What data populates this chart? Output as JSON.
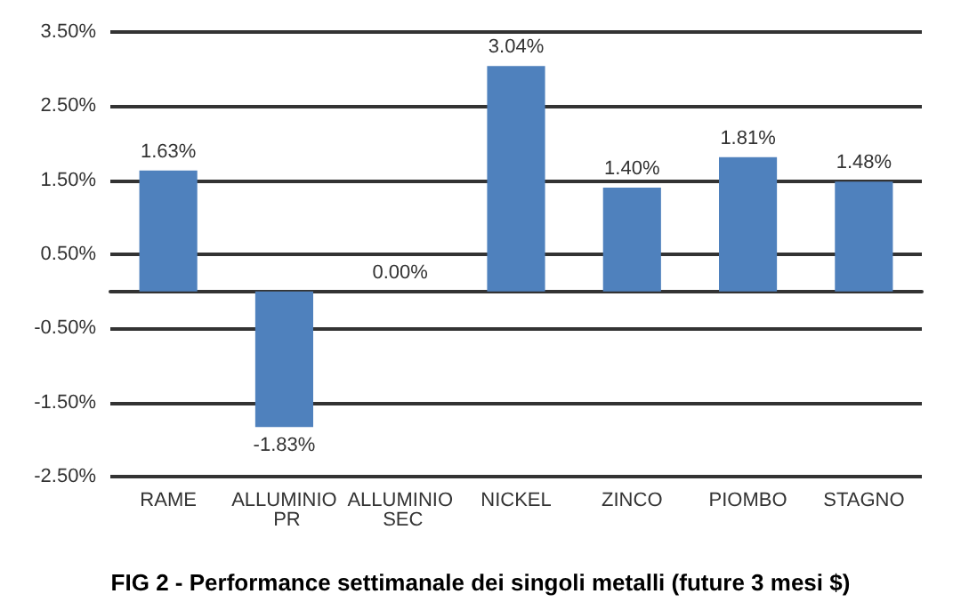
{
  "chart_data": {
    "type": "bar",
    "title": "FIG 2 - Performance settimanale dei singoli metalli (future 3 mesi $)",
    "categories": [
      "RAME",
      "ALLUMINIO PR",
      "ALLUMINIO SEC",
      "NICKEL",
      "ZINCO",
      "PIOMBO",
      "STAGNO"
    ],
    "values": [
      1.63,
      -1.83,
      0.0,
      3.04,
      1.4,
      1.81,
      1.48
    ],
    "value_labels": [
      "1.63%",
      "-1.83%",
      "0.00%",
      "3.04%",
      "1.40%",
      "1.81%",
      "1.48%"
    ],
    "color": "#4f81bd",
    "ylim": [
      -2.5,
      3.5
    ],
    "yticks": [
      {
        "value": -2.5,
        "label": "-2.50%"
      },
      {
        "value": -1.5,
        "label": "-1.50%"
      },
      {
        "value": -0.5,
        "label": "-0.50%"
      },
      {
        "value": 0.5,
        "label": "0.50%"
      },
      {
        "value": 1.5,
        "label": "1.50%"
      },
      {
        "value": 2.5,
        "label": "2.50%"
      },
      {
        "value": 3.5,
        "label": "3.50%"
      }
    ],
    "grid": "y"
  }
}
